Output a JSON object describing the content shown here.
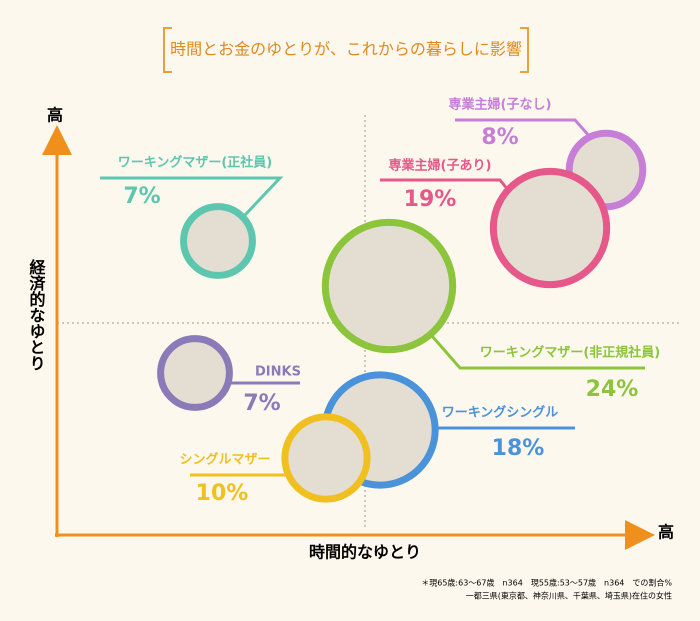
{
  "chart_data": {
    "type": "bubble",
    "title": "時間とお金のゆとりが、これからの暮らしに影響",
    "x_label": "時間的なゆとり",
    "y_label": "経済的なゆとり",
    "x_high": "高",
    "y_high": "高",
    "series": [
      {
        "name": "ワーキングマザー(正社員)",
        "value": 7,
        "value_label": "7%",
        "color": "#5cc6ae"
      },
      {
        "name": "専業主婦(子なし)",
        "value": 8,
        "value_label": "8%",
        "color": "#c67ed6"
      },
      {
        "name": "専業主婦(子あり)",
        "value": 19,
        "value_label": "19%",
        "color": "#e6588a"
      },
      {
        "name": "ワーキングマザー(非正規社員)",
        "value": 24,
        "value_label": "24%",
        "color": "#8cc43c"
      },
      {
        "name": "DINKS",
        "value": 7,
        "value_label": "7%",
        "color": "#8a7ab8"
      },
      {
        "name": "ワーキングシングル",
        "value": 18,
        "value_label": "18%",
        "color": "#4a92da"
      },
      {
        "name": "シングルマザー",
        "value": 10,
        "value_label": "10%",
        "color": "#f0c020"
      }
    ],
    "notes": [
      "＊現65歳:63〜67歳　n364　現55歳:53〜57歳　n364　での割合%",
      "一都三県(東京都、神奈川県、千葉県、埼玉県)在住の女性"
    ]
  }
}
